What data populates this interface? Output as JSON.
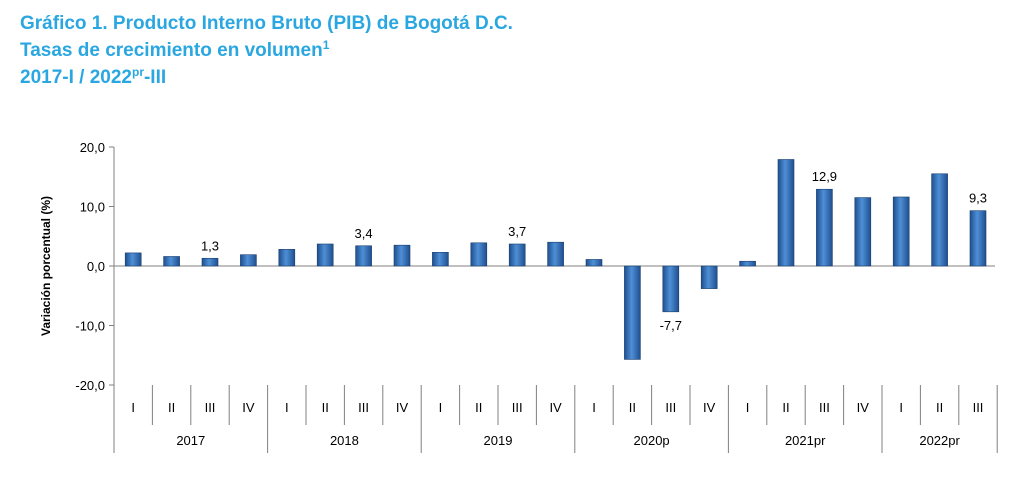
{
  "header": {
    "title_line1": "Gráfico 1. Producto Interno Bruto (PIB) de Bogotá D.C.",
    "title_line2": "Tasas de crecimiento en volumen",
    "title_line2_sup": "1",
    "title_line3_pre": "2017-I / 2022",
    "title_line3_sup": "pr",
    "title_line3_post": "-III"
  },
  "chart_data": {
    "type": "bar",
    "ylabel": "Variación porcentual (%)",
    "ylim": [
      -20,
      20
    ],
    "yticks": [
      20,
      10,
      0,
      -10,
      -20
    ],
    "ytick_labels": [
      "20,0",
      "10,0",
      "0,0",
      "-10,0",
      "-20,0"
    ],
    "grid": false,
    "bar_color": "#2f6fb7",
    "quarter_labels": [
      "I",
      "II",
      "III",
      "IV",
      "I",
      "II",
      "III",
      "IV",
      "I",
      "II",
      "III",
      "IV",
      "I",
      "II",
      "III",
      "IV",
      "I",
      "II",
      "III",
      "IV",
      "I",
      "II",
      "III"
    ],
    "year_groups": [
      {
        "label": "2017",
        "quarters": 4
      },
      {
        "label": "2018",
        "quarters": 4
      },
      {
        "label": "2019",
        "quarters": 4
      },
      {
        "label": "2020p",
        "quarters": 4
      },
      {
        "label": "2021pr",
        "quarters": 4
      },
      {
        "label": "2022pr",
        "quarters": 3
      }
    ],
    "values": [
      2.2,
      1.6,
      1.3,
      1.9,
      2.8,
      3.7,
      3.4,
      3.5,
      2.3,
      3.9,
      3.7,
      4.0,
      1.1,
      -15.7,
      -7.7,
      -3.8,
      0.8,
      17.9,
      12.9,
      11.5,
      11.6,
      15.5,
      9.3
    ],
    "data_labels": [
      {
        "index": 2,
        "text": "1,3"
      },
      {
        "index": 6,
        "text": "3,4"
      },
      {
        "index": 10,
        "text": "3,7"
      },
      {
        "index": 14,
        "text": "-7,7"
      },
      {
        "index": 18,
        "text": "12,9"
      },
      {
        "index": 22,
        "text": "9,3"
      }
    ]
  }
}
